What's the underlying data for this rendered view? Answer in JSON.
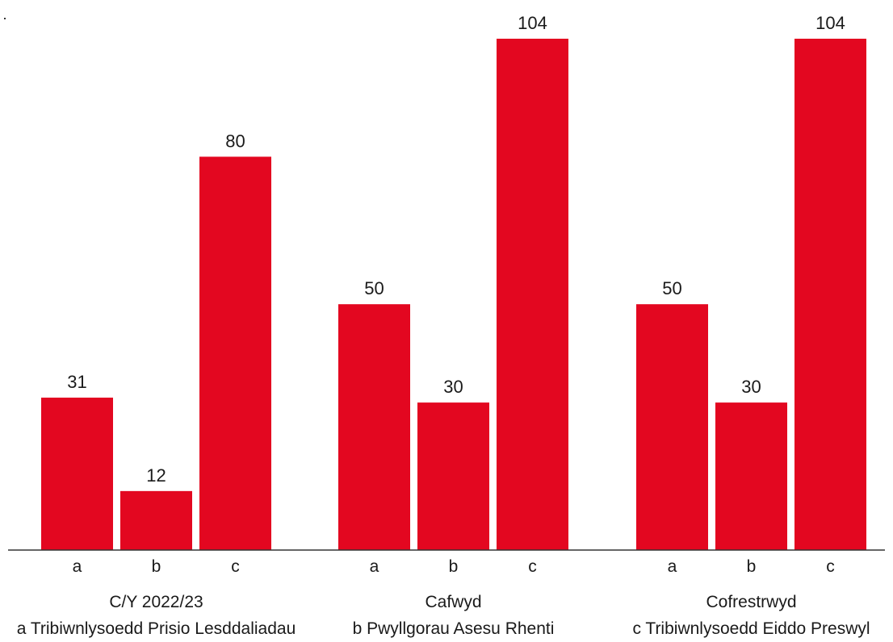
{
  "chart_data": {
    "type": "bar",
    "groups": [
      "C/Y 2022/23",
      "Cafwyd",
      "Cofrestrwyd"
    ],
    "sub_categories": [
      "a",
      "b",
      "c"
    ],
    "values": [
      [
        31,
        12,
        80
      ],
      [
        50,
        30,
        104
      ],
      [
        50,
        30,
        104
      ]
    ],
    "legend": [
      {
        "key": "a",
        "label": "a  Tribiwnlysoedd Prisio Lesddaliadau"
      },
      {
        "key": "b",
        "label": "b  Pwyllgorau Asesu Rhenti"
      },
      {
        "key": "c",
        "label": "c  Tribiwnlysoedd Eiddo Preswyl"
      }
    ],
    "title": "",
    "xlabel": "",
    "ylabel": "",
    "ylim": [
      0,
      104
    ],
    "grid": false,
    "bar_color": "#e30720",
    "legend_placement": "bottom"
  }
}
